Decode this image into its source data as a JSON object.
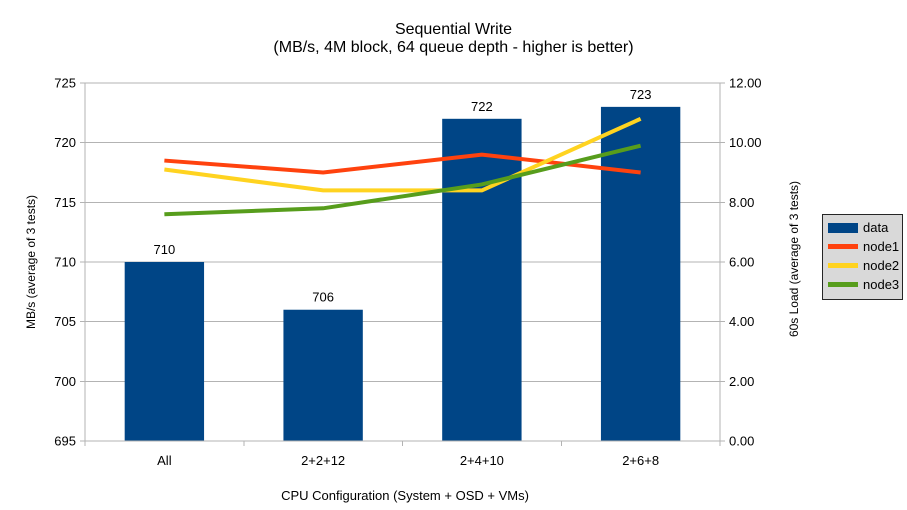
{
  "chart_data": {
    "type": "combo-bar-line",
    "title": "Sequential Write",
    "subtitle": "(MB/s, 4M block, 64 queue depth - higher is better)",
    "xlabel": "CPU Configuration (System + OSD + VMs)",
    "categories": [
      "All",
      "2+2+12",
      "2+4+10",
      "2+6+8"
    ],
    "left_axis": {
      "label": "MB/s (average of 3 tests)",
      "min": 695,
      "max": 725,
      "step": 5,
      "tick_labels": [
        "695",
        "700",
        "705",
        "710",
        "715",
        "720",
        "725"
      ]
    },
    "right_axis": {
      "label": "60s Load (average of 3 tests)",
      "min": 0,
      "max": 12,
      "step": 2,
      "tick_labels": [
        "0.00",
        "2.00",
        "4.00",
        "6.00",
        "8.00",
        "10.00",
        "12.00"
      ]
    },
    "bar_series": {
      "name": "data",
      "axis": "left",
      "color": "#004586",
      "values": [
        710,
        706,
        722,
        723
      ],
      "value_labels": [
        "710",
        "706",
        "722",
        "723"
      ]
    },
    "line_series": [
      {
        "name": "node1",
        "axis": "right",
        "color": "#ff420e",
        "values": [
          9.4,
          9.0,
          9.6,
          9.0
        ]
      },
      {
        "name": "node2",
        "axis": "right",
        "color": "#ffd320",
        "values": [
          9.1,
          8.4,
          8.4,
          10.8
        ]
      },
      {
        "name": "node3",
        "axis": "right",
        "color": "#579d1c",
        "values": [
          7.6,
          7.8,
          8.6,
          9.9
        ]
      }
    ],
    "legend": {
      "position": "right",
      "entries": [
        "data",
        "node1",
        "node2",
        "node3"
      ]
    },
    "grid": "horizontal-major",
    "colors": {
      "background": "#ffffff",
      "grid": "#b3b3b3",
      "axis": "#b3b3b3",
      "text": "#000000",
      "legend_background": "#d9d9d9",
      "legend_border": "#262626"
    }
  }
}
